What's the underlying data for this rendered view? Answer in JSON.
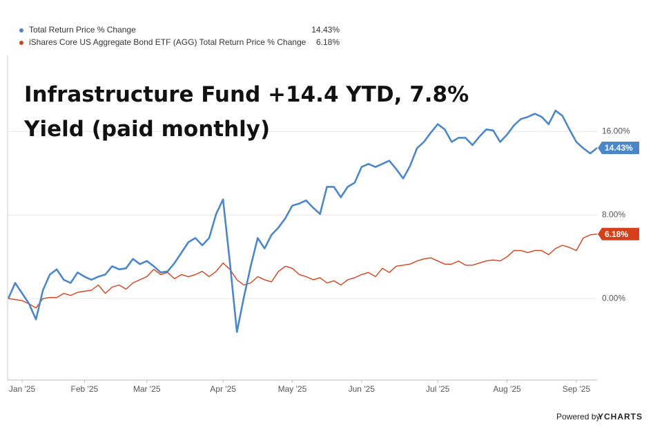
{
  "chart_data": {
    "type": "line",
    "title": "Infrastructure Fund +14.4 YTD, 7.8% Yield (paid monthly)",
    "categories": [
      null,
      null,
      "Jan '25",
      null,
      null,
      null,
      null,
      null,
      null,
      null,
      null,
      "Feb '25",
      null,
      null,
      null,
      null,
      null,
      null,
      null,
      null,
      "Mar '25",
      null,
      null,
      null,
      null,
      null,
      null,
      null,
      null,
      null,
      null,
      "Apr '25",
      null,
      null,
      null,
      null,
      null,
      null,
      null,
      null,
      null,
      "May '25",
      null,
      null,
      null,
      null,
      null,
      null,
      null,
      null,
      null,
      "Jun '25",
      null,
      null,
      null,
      null,
      null,
      null,
      null,
      null,
      null,
      null,
      "Jul '25",
      null,
      null,
      null,
      null,
      null,
      null,
      null,
      null,
      null,
      "Aug '25",
      null,
      null,
      null,
      null,
      null,
      null,
      null,
      null,
      null,
      "Sep '25",
      null,
      null,
      null
    ],
    "series": [
      {
        "name": "Total Return Price % Change",
        "color": "#4a86c8",
        "end_label": {
          "value": 14.43,
          "label": "14.43%"
        },
        "values": [
          0,
          1.5,
          0.5,
          -0.5,
          -2.0,
          0.8,
          2.3,
          2.8,
          1.8,
          1.5,
          2.5,
          2.1,
          1.8,
          2.1,
          2.3,
          3.1,
          2.8,
          2.9,
          3.8,
          3.3,
          3.6,
          3.1,
          2.5,
          2.6,
          3.4,
          4.4,
          5.4,
          5.8,
          5.1,
          5.8,
          8.1,
          9.5,
          3.4,
          -3.2,
          0.1,
          3.1,
          5.8,
          4.8,
          6.1,
          6.8,
          7.7,
          8.9,
          9.1,
          9.4,
          8.7,
          8.1,
          10.7,
          10.7,
          9.7,
          10.7,
          11.1,
          12.6,
          12.9,
          12.6,
          12.9,
          13.2,
          12.4,
          11.5,
          12.7,
          14.4,
          15.0,
          15.9,
          16.7,
          16.2,
          15.0,
          15.4,
          15.4,
          14.7,
          15.5,
          16.2,
          16.1,
          15.0,
          15.7,
          16.6,
          17.2,
          17.4,
          17.7,
          17.4,
          16.7,
          18.0,
          17.5,
          16.2,
          15.0,
          14.4,
          13.9,
          14.43
        ]
      },
      {
        "name": "iShares Core US Aggregate Bond ETF (AGG) Total Return Price % Change",
        "color": "#d4401a",
        "end_label": {
          "value": 6.18,
          "label": "6.18%"
        },
        "values": [
          0,
          -0.1,
          -0.2,
          -0.5,
          -0.9,
          0,
          0.1,
          0.1,
          0.5,
          0.3,
          0.6,
          0.7,
          0.8,
          1.3,
          0.5,
          1.1,
          1.3,
          0.9,
          1.5,
          1.8,
          2.1,
          2.8,
          2.3,
          2.5,
          1.9,
          2.3,
          2.1,
          2.3,
          2.6,
          2.1,
          2.6,
          3.4,
          2.8,
          1.8,
          1.3,
          1.5,
          2.1,
          1.8,
          1.6,
          2.6,
          3.1,
          2.9,
          2.3,
          2.1,
          1.8,
          2.0,
          1.5,
          1.7,
          1.3,
          1.8,
          2.0,
          2.3,
          2.5,
          2.1,
          2.9,
          2.5,
          3.1,
          3.2,
          3.3,
          3.6,
          3.8,
          3.9,
          3.6,
          3.3,
          3.3,
          3.6,
          3.2,
          3.2,
          3.4,
          3.6,
          3.7,
          3.6,
          4.0,
          4.6,
          4.6,
          4.4,
          4.6,
          4.6,
          4.2,
          4.8,
          5.1,
          4.9,
          4.6,
          5.8,
          6.1,
          6.18
        ]
      }
    ],
    "ylim": [
      -7.8,
      23.3
    ],
    "yticks": [
      {
        "value": 0,
        "label": "0.00%"
      },
      {
        "value": 8,
        "label": "8.00%"
      },
      {
        "value": 16,
        "label": "16.00%"
      }
    ],
    "grid": true,
    "legend": "top-left",
    "credit": "Powered by",
    "brand": "YCHARTS"
  }
}
